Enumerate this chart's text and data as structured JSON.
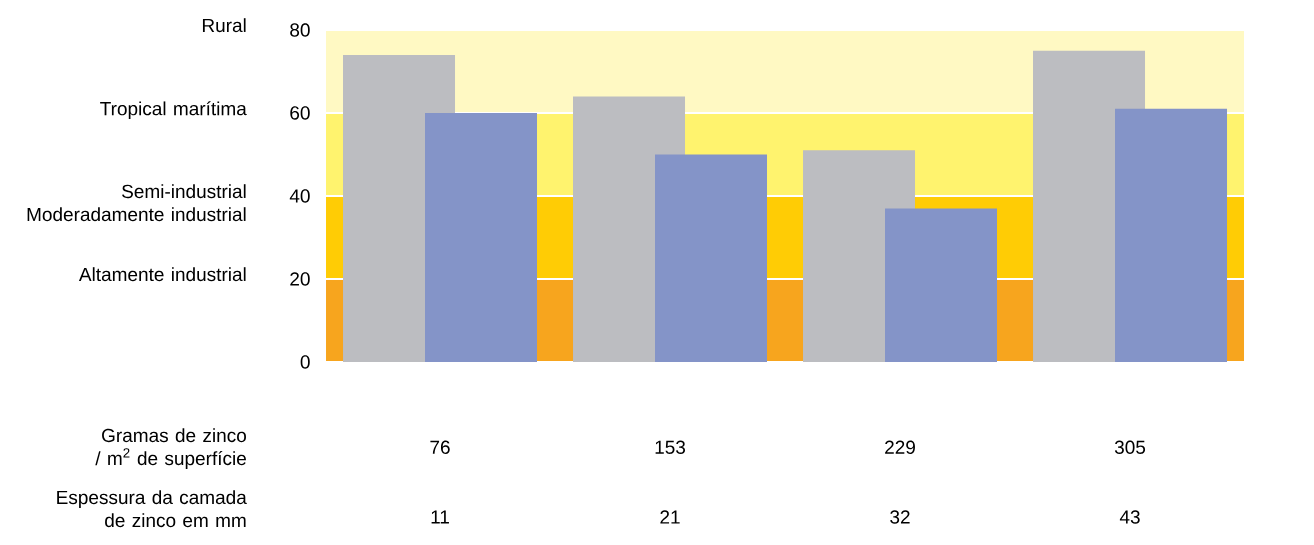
{
  "chart_data": {
    "type": "bar",
    "xlabel": "Gramas de zinco / m$^{2}$ de superfície",
    "categories": [
      "76",
      "153",
      "229",
      "305"
    ],
    "series": [
      {
        "color": "#bcbdc1",
        "values": [
          74,
          64,
          51,
          75
        ]
      },
      {
        "color": "#8494c8",
        "values": [
          60,
          50,
          37,
          61
        ]
      }
    ],
    "ylim": [
      0,
      80
    ],
    "yticks": [
      0,
      20,
      40,
      60,
      80
    ],
    "bands": [
      {
        "axis": "y",
        "from": 0,
        "to": 20,
        "color": "#f7a51e"
      },
      {
        "axis": "y",
        "from": 20,
        "to": 40,
        "color": "#ffcc05"
      },
      {
        "axis": "y",
        "from": 40,
        "to": 60,
        "color": "#fff36e"
      },
      {
        "axis": "y",
        "from": 60,
        "to": 80,
        "color": "#fff9c3"
      }
    ],
    "annotations": [
      "Rural",
      "Tropical marítima",
      "Semi-industrial Moderadamente industrial",
      "Altamente industrial",
      "Espessura da camada de zinco em mm",
      "11",
      "21",
      "32",
      "43"
    ],
    "grid": false
  }
}
